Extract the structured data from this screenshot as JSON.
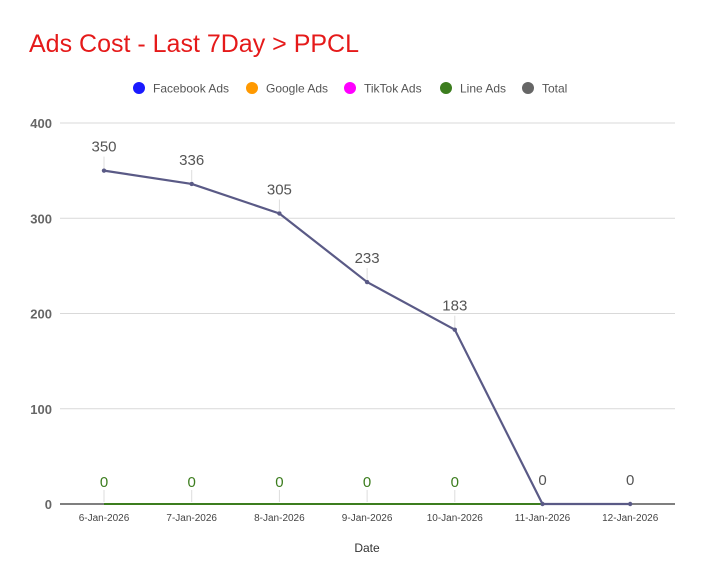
{
  "colors": {
    "title": "#e51a1a",
    "gridline": "#d9d9d9",
    "axis": "#333333",
    "total_line": "#5a5a86",
    "zero_label": "#3c7d1e"
  },
  "chart_data": {
    "type": "line",
    "title": "Ads Cost - Last 7Day > PPCL",
    "xlabel": "Date",
    "ylabel": "",
    "ylim": [
      0,
      400
    ],
    "yticks": [
      0,
      100,
      200,
      300,
      400
    ],
    "grid": true,
    "legend_position": "top",
    "categories": [
      "6-Jan-2026",
      "7-Jan-2026",
      "8-Jan-2026",
      "9-Jan-2026",
      "10-Jan-2026",
      "11-Jan-2026",
      "12-Jan-2026"
    ],
    "series": [
      {
        "name": "Facebook Ads",
        "color": "#1a1aff",
        "values": [
          0,
          0,
          0,
          0,
          0,
          0,
          0
        ]
      },
      {
        "name": "Google Ads",
        "color": "#ff9900",
        "values": [
          0,
          0,
          0,
          0,
          0,
          0,
          0
        ]
      },
      {
        "name": "TikTok Ads",
        "color": "#ff00ff",
        "values": [
          0,
          0,
          0,
          0,
          0,
          0,
          0
        ]
      },
      {
        "name": "Line Ads",
        "color": "#3c7d1e",
        "values": [
          0,
          0,
          0,
          0,
          0,
          0,
          0
        ]
      },
      {
        "name": "Total",
        "color": "#666666",
        "values": [
          350,
          336,
          305,
          233,
          183,
          0,
          0
        ]
      }
    ],
    "data_labels": {
      "total": [
        "350",
        "336",
        "305",
        "233",
        "183",
        "0",
        "0"
      ],
      "zero": [
        "0",
        "0",
        "0",
        "0",
        "0"
      ]
    }
  }
}
